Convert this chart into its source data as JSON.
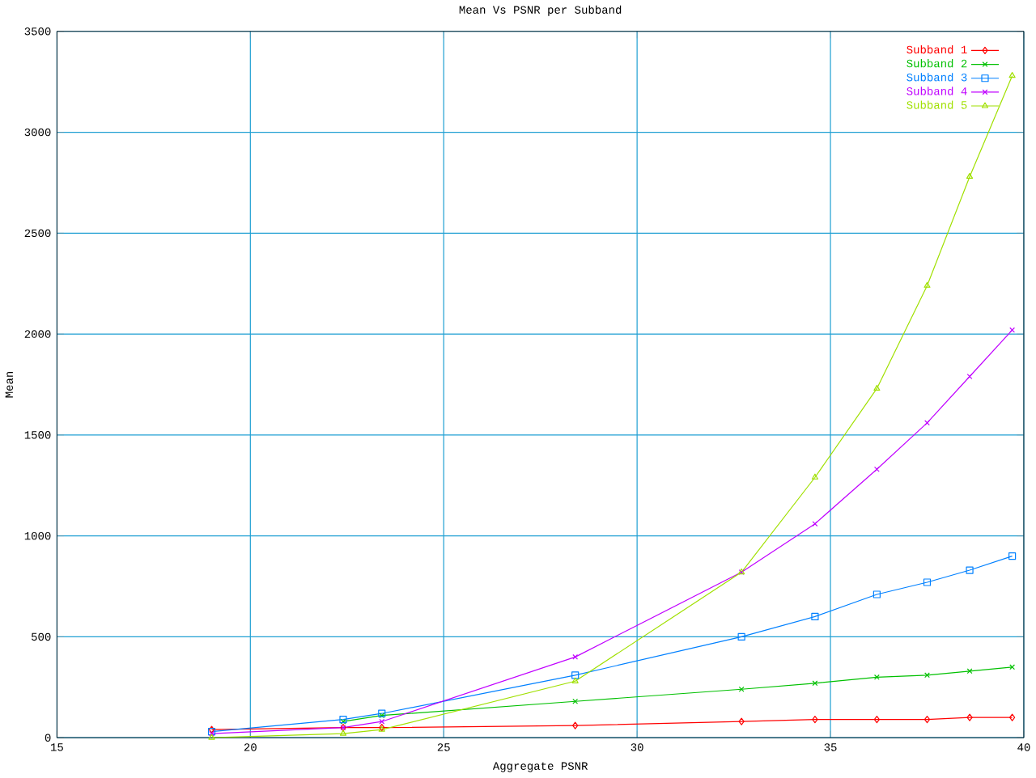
{
  "chart_data": {
    "type": "line",
    "title": "Mean Vs PSNR per Subband",
    "xlabel": "Aggregate PSNR",
    "ylabel": "Mean",
    "x": [
      19.0,
      22.4,
      23.4,
      28.4,
      32.7,
      34.6,
      36.2,
      37.5,
      38.6,
      39.7
    ],
    "xlim": [
      15,
      40
    ],
    "xticks": [
      15,
      20,
      25,
      30,
      35,
      40
    ],
    "ylim": [
      0,
      3500
    ],
    "yticks": [
      0,
      500,
      1000,
      1500,
      2000,
      2500,
      3000,
      3500
    ],
    "grid": true,
    "legend": "top right",
    "series": [
      {
        "name": "Subband 1",
        "color": "#ff0000",
        "marker": "diamond",
        "values": [
          40,
          50,
          50,
          60,
          80,
          90,
          90,
          90,
          100,
          100
        ]
      },
      {
        "name": "Subband 2",
        "color": "#00c000",
        "marker": "cross",
        "values": [
          null,
          80,
          110,
          180,
          240,
          270,
          300,
          310,
          330,
          350
        ]
      },
      {
        "name": "Subband 3",
        "color": "#0080ff",
        "marker": "square",
        "values": [
          30,
          90,
          120,
          310,
          500,
          600,
          710,
          770,
          830,
          900
        ]
      },
      {
        "name": "Subband 4",
        "color": "#c000ff",
        "marker": "cross",
        "values": [
          20,
          50,
          80,
          400,
          820,
          1060,
          1330,
          1560,
          1790,
          2020
        ]
      },
      {
        "name": "Subband 5",
        "color": "#a0e000",
        "marker": "triangle",
        "values": [
          0,
          20,
          40,
          280,
          820,
          1290,
          1730,
          2240,
          2780,
          3280
        ]
      }
    ]
  }
}
